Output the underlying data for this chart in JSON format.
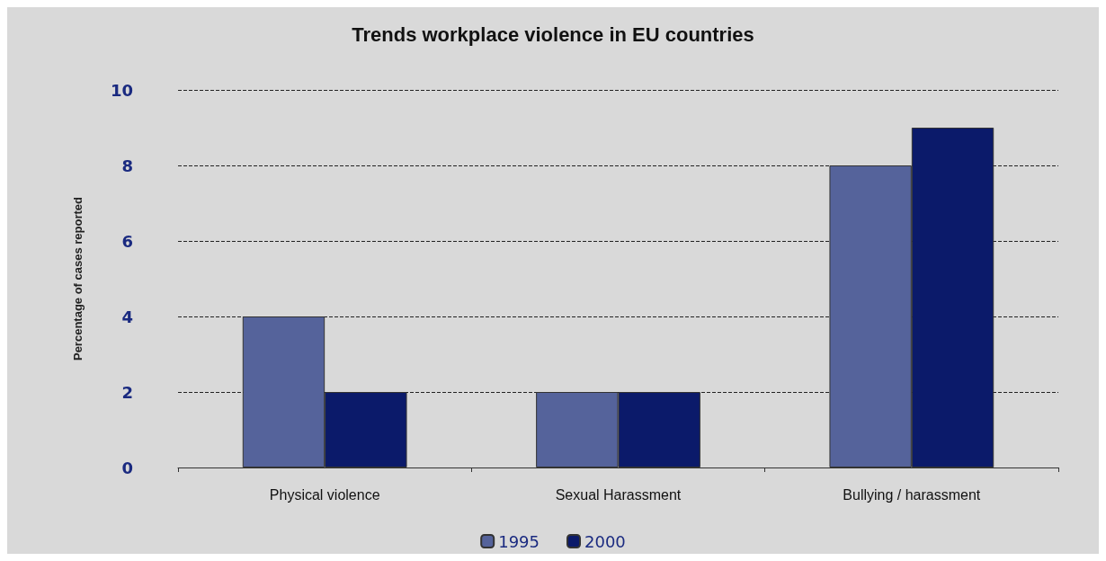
{
  "chart_data": {
    "type": "bar",
    "title": "Trends workplace violence in EU countries",
    "ylabel": "Percentage of cases reported",
    "categories": [
      "Physical violence",
      "Sexual Harassment",
      "Bullying / harassment"
    ],
    "series": [
      {
        "name": "1995",
        "color": "#55639b",
        "values": [
          4,
          2,
          8
        ]
      },
      {
        "name": "2000",
        "color": "#0b1a6a",
        "values": [
          2,
          2,
          9
        ]
      }
    ],
    "ylim": [
      0,
      10
    ],
    "yticks": [
      0,
      2,
      4,
      6,
      8,
      10
    ],
    "grid": "y",
    "legend": "bottom"
  }
}
